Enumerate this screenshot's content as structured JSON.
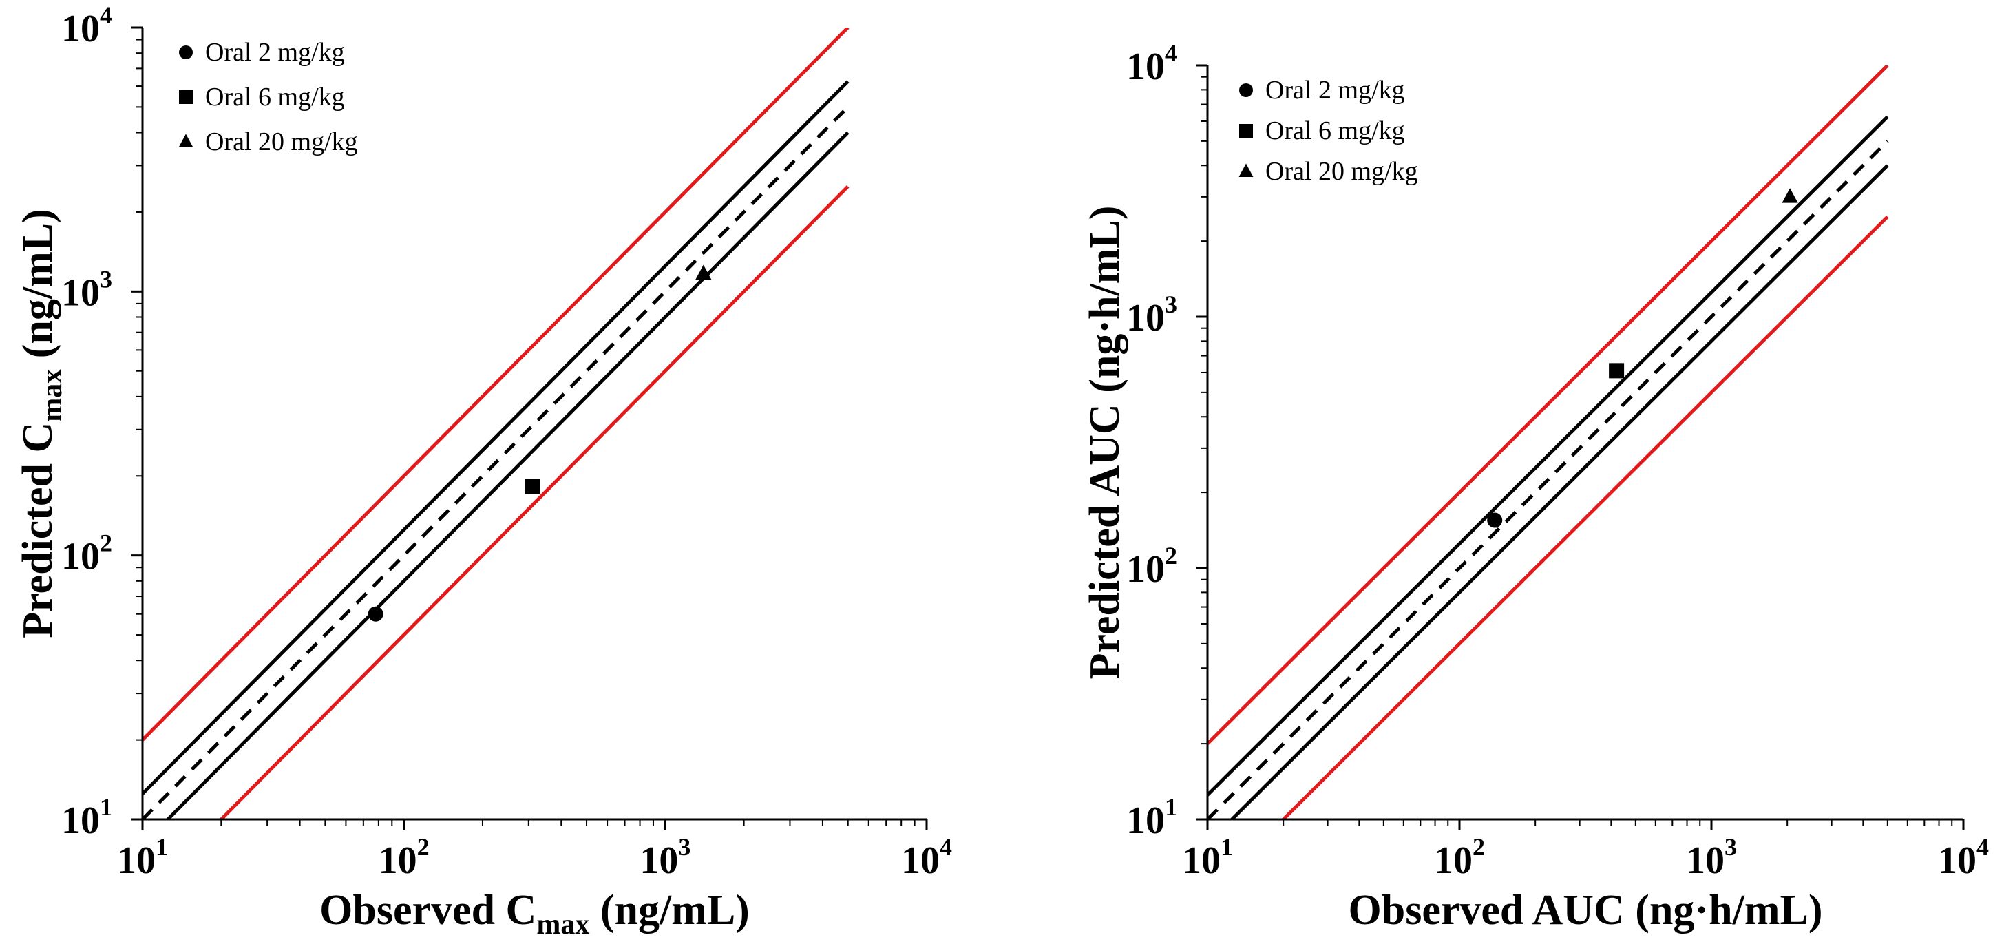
{
  "chart_data": [
    {
      "type": "scatter",
      "id": "cmax",
      "xscale": "log",
      "yscale": "log",
      "xlim": [
        10,
        10000
      ],
      "ylim": [
        10,
        10000
      ],
      "ticks": [
        {
          "value": 10,
          "base": "10",
          "exp": "1"
        },
        {
          "value": 100,
          "base": "10",
          "exp": "2"
        },
        {
          "value": 1000,
          "base": "10",
          "exp": "3"
        },
        {
          "value": 10000,
          "base": "10",
          "exp": "4"
        }
      ],
      "xlabel": {
        "main": "Observed C",
        "sub": "max",
        "rest": " (ng/mL)"
      },
      "ylabel": {
        "main": "Predicted C",
        "sub": "max",
        "rest": " (ng/mL)"
      },
      "legend_position": "top-left",
      "series": [
        {
          "name": "Oral 2 mg/kg",
          "marker": "circle",
          "x": [
            78
          ],
          "y": [
            60
          ]
        },
        {
          "name": "Oral 6 mg/kg",
          "marker": "square",
          "x": [
            310
          ],
          "y": [
            182
          ]
        },
        {
          "name": "Oral 20 mg/kg",
          "marker": "triangle",
          "x": [
            1400
          ],
          "y": [
            1170
          ]
        }
      ],
      "reference_lines": [
        {
          "fold": 1,
          "style": "dashed",
          "color": "#000000"
        },
        {
          "fold": 1.25,
          "style": "solid",
          "color": "#000000"
        },
        {
          "fold": 0.8,
          "style": "solid",
          "color": "#000000"
        },
        {
          "fold": 2,
          "style": "solid",
          "color": "#e31a1c"
        },
        {
          "fold": 0.5,
          "style": "solid",
          "color": "#e31a1c"
        }
      ]
    },
    {
      "type": "scatter",
      "id": "auc",
      "xscale": "log",
      "yscale": "log",
      "xlim": [
        10,
        10000
      ],
      "ylim": [
        10,
        10000
      ],
      "ticks": [
        {
          "value": 10,
          "base": "10",
          "exp": "1"
        },
        {
          "value": 100,
          "base": "10",
          "exp": "2"
        },
        {
          "value": 1000,
          "base": "10",
          "exp": "3"
        },
        {
          "value": 10000,
          "base": "10",
          "exp": "4"
        }
      ],
      "xlabel": {
        "main": "Observed AUC (ng·h/mL)",
        "sub": "",
        "rest": ""
      },
      "ylabel": {
        "main": "Predicted AUC (ng·h/mL)",
        "sub": "",
        "rest": ""
      },
      "legend_position": "top-left",
      "series": [
        {
          "name": "Oral 2 mg/kg",
          "marker": "circle",
          "x": [
            138
          ],
          "y": [
            155
          ]
        },
        {
          "name": "Oral 6 mg/kg",
          "marker": "square",
          "x": [
            420
          ],
          "y": [
            610
          ]
        },
        {
          "name": "Oral 20 mg/kg",
          "marker": "triangle",
          "x": [
            2050
          ],
          "y": [
            3000
          ]
        }
      ],
      "reference_lines": [
        {
          "fold": 1,
          "style": "dashed",
          "color": "#000000"
        },
        {
          "fold": 1.25,
          "style": "solid",
          "color": "#000000"
        },
        {
          "fold": 0.8,
          "style": "solid",
          "color": "#000000"
        },
        {
          "fold": 2,
          "style": "solid",
          "color": "#e31a1c"
        },
        {
          "fold": 0.5,
          "style": "solid",
          "color": "#e31a1c"
        }
      ]
    }
  ]
}
